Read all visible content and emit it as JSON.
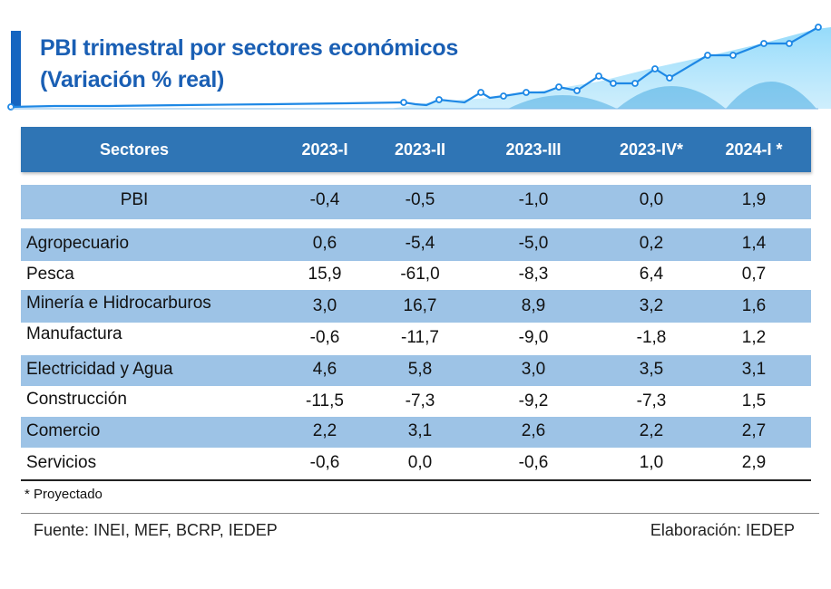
{
  "title_line1": "PBI trimestral por sectores económicos",
  "title_line2": "(Variación % real)",
  "headers": [
    "Sectores",
    "2023-I",
    "2023-II",
    "2023-III",
    "2023-IV*",
    "2024-I *"
  ],
  "rows": [
    {
      "sector": "PBI",
      "values": [
        "-0,4",
        "-0,5",
        "-1,0",
        "0,0",
        "1,9"
      ]
    },
    {
      "sector": "Agropecuario",
      "values": [
        "0,6",
        "-5,4",
        "-5,0",
        "0,2",
        "1,4"
      ]
    },
    {
      "sector": "Pesca",
      "values": [
        "15,9",
        "-61,0",
        "-8,3",
        "6,4",
        "0,7"
      ]
    },
    {
      "sector": "Minería e Hidrocarburos",
      "values": [
        "3,0",
        "16,7",
        "8,9",
        "3,2",
        "1,6"
      ]
    },
    {
      "sector": "Manufactura",
      "values": [
        "-0,6",
        "-11,7",
        "-9,0",
        "-1,8",
        "1,2"
      ]
    },
    {
      "sector": "Electricidad y Agua",
      "values": [
        "4,6",
        "5,8",
        "3,0",
        "3,5",
        "3,1"
      ]
    },
    {
      "sector": "Construcción",
      "values": [
        "-11,5",
        "-7,3",
        "-9,2",
        "-7,3",
        "1,5"
      ]
    },
    {
      "sector": "Comercio",
      "values": [
        "2,2",
        "3,1",
        "2,6",
        "2,2",
        "2,7"
      ]
    },
    {
      "sector": "Servicios",
      "values": [
        "-0,6",
        "0,0",
        "-0,6",
        "1,0",
        "2,9"
      ]
    }
  ],
  "note": "* Proyectado",
  "source": "Fuente: INEI, MEF, BCRP, IEDEP",
  "credit": "Elaboración: IEDEP",
  "colors": {
    "header": "#2f75b5",
    "shade": "#9dc3e6",
    "title": "#1a5fb4",
    "accent": "#1565c0"
  }
}
